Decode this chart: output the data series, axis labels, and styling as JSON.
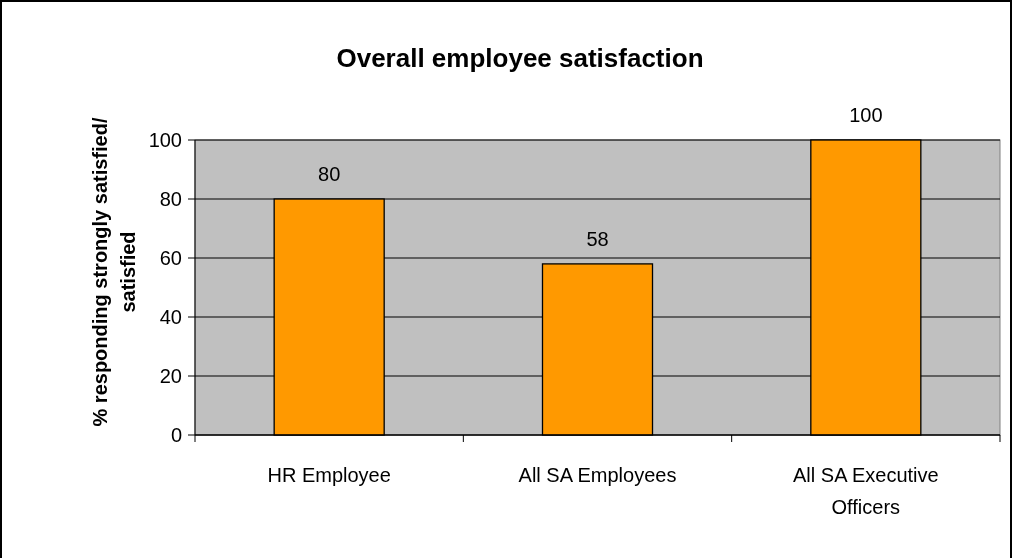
{
  "chart_data": {
    "type": "bar",
    "title": "Overall employee satisfaction",
    "ylabel": "% responding strongly satisfied/ satisfied",
    "categories": [
      "HR Employee",
      "All SA Employees",
      "All SA Executive Officers"
    ],
    "values": [
      80,
      58,
      100
    ],
    "color": "#ff9900",
    "ylim": [
      0,
      100
    ],
    "yticks": [
      0,
      20,
      40,
      60,
      80,
      100
    ],
    "grid": "y",
    "data_labels": true
  }
}
